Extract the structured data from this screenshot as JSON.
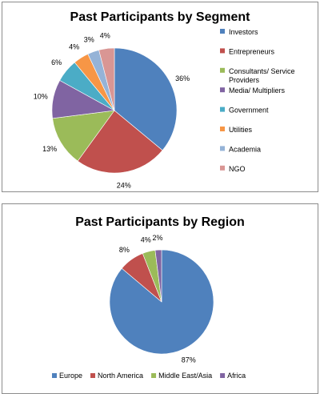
{
  "chart_data": [
    {
      "type": "pie",
      "title": "Past Participants by Segment",
      "categories": [
        "Investors",
        "Entrepreneurs",
        "Consultants/ Service Providers",
        "Media/ Multipliers",
        "Government",
        "Utilities",
        "Academia",
        "NGO"
      ],
      "values": [
        36,
        24,
        13,
        10,
        6,
        4,
        3,
        4
      ],
      "value_labels": [
        "36%",
        "24%",
        "13%",
        "10%",
        "6%",
        "4%",
        "3%",
        "4%"
      ],
      "legend_labels": [
        [
          "Investors"
        ],
        [
          "Entrepreneurs"
        ],
        [
          "Consultants/ Service",
          "Providers"
        ],
        [
          "Media/ Multipliers"
        ],
        [
          "Government"
        ],
        [
          "Utilities"
        ],
        [
          "Academia"
        ],
        [
          "NGO"
        ]
      ],
      "colors": [
        "#4f81bd",
        "#c0504d",
        "#9bbb59",
        "#8064a2",
        "#4bacc6",
        "#f79646",
        "#95b3d7",
        "#d99694"
      ],
      "legend_position": "right"
    },
    {
      "type": "pie",
      "title": "Past Participants by Region",
      "categories": [
        "Europe",
        "North America",
        "Middle East/Asia",
        "Africa"
      ],
      "values": [
        87,
        8,
        4,
        2
      ],
      "value_labels": [
        "87%",
        "8%",
        "4%",
        "2%"
      ],
      "colors": [
        "#4f81bd",
        "#c0504d",
        "#9bbb59",
        "#8064a2"
      ],
      "legend_position": "bottom"
    }
  ]
}
